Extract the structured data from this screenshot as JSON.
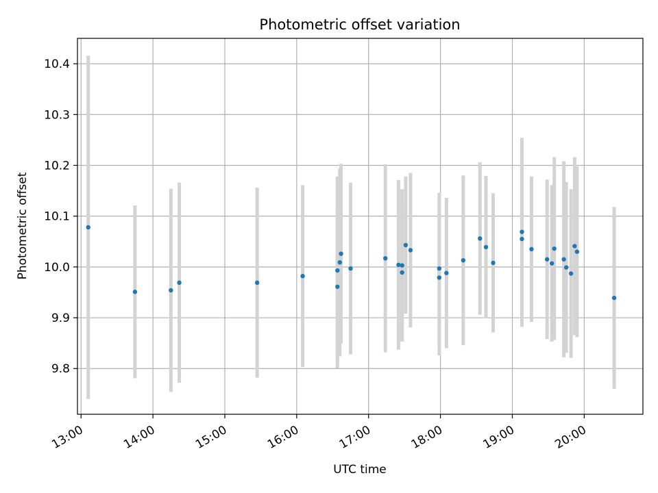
{
  "chart_data": {
    "type": "scatter",
    "title": "Photometric offset variation",
    "xlabel": "UTC time",
    "ylabel": "Photometric offset",
    "xlim": [
      "12:57",
      "20:49"
    ],
    "ylim": [
      9.71,
      10.45
    ],
    "x_ticks": [
      "13:00",
      "14:00",
      "15:00",
      "16:00",
      "17:00",
      "18:00",
      "19:00",
      "20:00"
    ],
    "y_ticks": [
      "9.8",
      "9.9",
      "10.0",
      "10.1",
      "10.2",
      "10.3",
      "10.4"
    ],
    "grid": true,
    "colors": {
      "point": "#1f77b4",
      "errorbar": "#d3d3d3",
      "grid": "#b0b0b0"
    },
    "points": [
      {
        "x": "13:06",
        "y": 10.078,
        "err": 0.338
      },
      {
        "x": "13:45",
        "y": 9.951,
        "err": 0.17
      },
      {
        "x": "14:15",
        "y": 9.954,
        "err": 0.2
      },
      {
        "x": "14:22",
        "y": 9.969,
        "err": 0.197
      },
      {
        "x": "15:27",
        "y": 9.969,
        "err": 0.187
      },
      {
        "x": "16:05",
        "y": 9.982,
        "err": 0.179
      },
      {
        "x": "16:34",
        "y": 9.993,
        "err": 0.185
      },
      {
        "x": "16:34",
        "y": 9.961,
        "err": 0.16
      },
      {
        "x": "16:36",
        "y": 10.009,
        "err": 0.185
      },
      {
        "x": "16:37",
        "y": 10.026,
        "err": 0.177
      },
      {
        "x": "16:45",
        "y": 9.997,
        "err": 0.169
      },
      {
        "x": "17:14",
        "y": 10.017,
        "err": 0.185
      },
      {
        "x": "17:25",
        "y": 10.004,
        "err": 0.167
      },
      {
        "x": "17:28",
        "y": 9.989,
        "err": 0.134
      },
      {
        "x": "17:28",
        "y": 10.003,
        "err": 0.15
      },
      {
        "x": "17:31",
        "y": 10.043,
        "err": 0.135
      },
      {
        "x": "17:35",
        "y": 10.033,
        "err": 0.152
      },
      {
        "x": "17:59",
        "y": 9.997,
        "err": 0.149
      },
      {
        "x": "17:59",
        "y": 9.979,
        "err": 0.153
      },
      {
        "x": "18:05",
        "y": 9.988,
        "err": 0.148
      },
      {
        "x": "18:19",
        "y": 10.013,
        "err": 0.167
      },
      {
        "x": "18:33",
        "y": 10.056,
        "err": 0.15
      },
      {
        "x": "18:38",
        "y": 10.039,
        "err": 0.14
      },
      {
        "x": "18:44",
        "y": 10.008,
        "err": 0.137
      },
      {
        "x": "19:08",
        "y": 10.069,
        "err": 0.185
      },
      {
        "x": "19:08",
        "y": 10.055,
        "err": 0.173
      },
      {
        "x": "19:16",
        "y": 10.035,
        "err": 0.143
      },
      {
        "x": "19:29",
        "y": 10.015,
        "err": 0.157
      },
      {
        "x": "19:33",
        "y": 10.007,
        "err": 0.154
      },
      {
        "x": "19:35",
        "y": 10.036,
        "err": 0.18
      },
      {
        "x": "19:43",
        "y": 10.015,
        "err": 0.193
      },
      {
        "x": "19:45",
        "y": 9.999,
        "err": 0.168
      },
      {
        "x": "19:49",
        "y": 9.987,
        "err": 0.166
      },
      {
        "x": "19:52",
        "y": 10.041,
        "err": 0.175
      },
      {
        "x": "19:54",
        "y": 10.03,
        "err": 0.168
      },
      {
        "x": "20:25",
        "y": 9.939,
        "err": 0.179
      }
    ]
  }
}
